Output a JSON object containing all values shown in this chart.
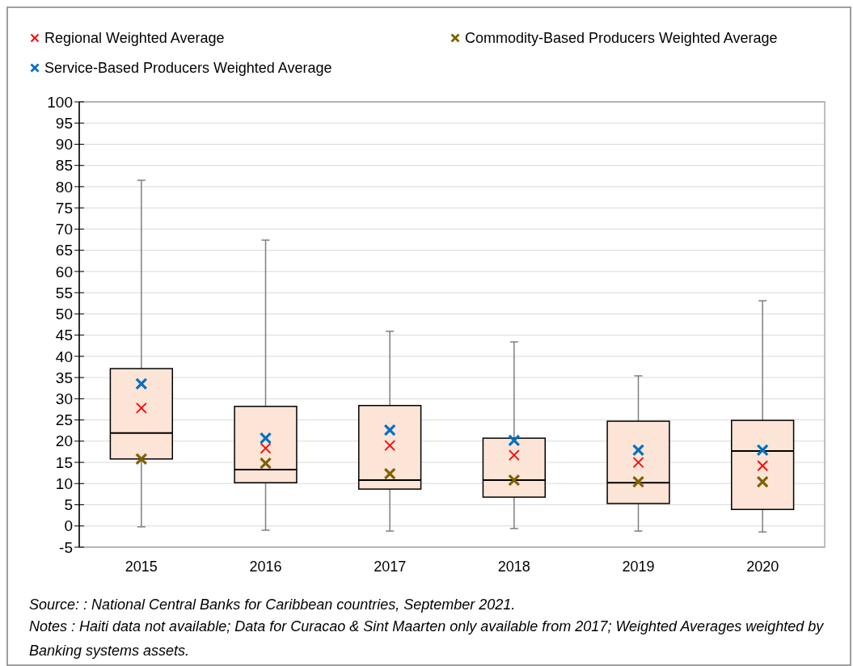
{
  "chart_data": {
    "type": "box",
    "categories": [
      "2015",
      "2016",
      "2017",
      "2018",
      "2019",
      "2020"
    ],
    "boxes": [
      {
        "low": -0.2,
        "q1": 15.8,
        "median": 21.9,
        "q3": 37.1,
        "high": 81.5
      },
      {
        "low": -1.0,
        "q1": 10.2,
        "median": 13.3,
        "q3": 28.2,
        "high": 67.4
      },
      {
        "low": -1.2,
        "q1": 8.7,
        "median": 10.8,
        "q3": 28.4,
        "high": 45.9
      },
      {
        "low": -0.6,
        "q1": 6.8,
        "median": 10.8,
        "q3": 20.7,
        "high": 43.4
      },
      {
        "low": -1.2,
        "q1": 5.3,
        "median": 10.2,
        "q3": 24.7,
        "high": 35.4
      },
      {
        "low": -1.4,
        "q1": 3.9,
        "median": 17.7,
        "q3": 24.9,
        "high": 53.1
      }
    ],
    "color": "#fce4d6",
    "series": [
      {
        "type": "scatter",
        "name": "Regional Weighted Average",
        "color": "#ff0000",
        "marker": "cross",
        "values": [
          27.8,
          18.3,
          19.0,
          16.7,
          15.0,
          14.2
        ]
      },
      {
        "type": "scatter",
        "name": "Commodity-Based Producers Weighted Average",
        "color": "#7f6000",
        "marker": "cross",
        "values": [
          15.8,
          14.8,
          12.3,
          10.8,
          10.4,
          10.4
        ]
      },
      {
        "type": "scatter",
        "name": "Service-Based Producers Weighted Average",
        "color": "#0070c0",
        "marker": "cross",
        "values": [
          33.5,
          20.7,
          22.6,
          20.2,
          17.9,
          17.9
        ]
      }
    ],
    "ylim": [
      -5,
      100
    ],
    "yticks": [
      -5,
      0,
      5,
      10,
      15,
      20,
      25,
      30,
      35,
      40,
      45,
      50,
      55,
      60,
      65,
      70,
      75,
      80,
      85,
      90,
      95,
      100
    ],
    "grid": "y",
    "legend": "top",
    "annotations": [
      "Source: : National Central Banks for Caribbean countries, September 2021.",
      "Notes : Haiti data not available; Data for Curacao & Sint Maarten only available from 2017; Weighted Averages weighted by Banking systems assets."
    ]
  }
}
